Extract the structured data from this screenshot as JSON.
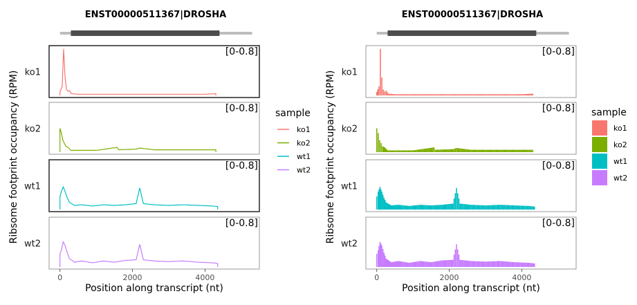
{
  "colors": {
    "ko1": "#F8766D",
    "ko2": "#7CAE00",
    "wt1": "#00BFC4",
    "wt2": "#C77CFF",
    "panel_border": "#7f7f7f",
    "highlight_border": "#333333",
    "gene_track": "#bdbdbd",
    "gene_cds": "#4d4d4d"
  },
  "chart_data": [
    {
      "type": "line",
      "title": "ENST00000511367|DROSHA",
      "xlabel": "Position along transcript (nt)",
      "ylabel": "Ribsome footprint occupancy (RPM)",
      "xlim": [
        -300,
        5500
      ],
      "x_ticks": [
        0,
        2000,
        4000
      ],
      "x_tick_labels": [
        "0",
        "2000",
        "4000"
      ],
      "ylim": [
        0,
        0.8
      ],
      "grid": false,
      "gene_model": {
        "transcript_start": 0,
        "transcript_end": 5300,
        "cds_start": 300,
        "cds_end": 4400
      },
      "legend": {
        "title": "sample",
        "position": "right",
        "style": "line",
        "entries": [
          "ko1",
          "ko2",
          "wt1",
          "wt2"
        ]
      },
      "facets": [
        {
          "label": "ko1",
          "range_label": "[0-0.8]",
          "highlighted": true
        },
        {
          "label": "ko2",
          "range_label": "[0-0.8]",
          "highlighted": false
        },
        {
          "label": "wt1",
          "range_label": "[0-0.8]",
          "highlighted": true
        },
        {
          "label": "wt2",
          "range_label": "[0-0.8]",
          "highlighted": false
        }
      ],
      "series": [
        {
          "name": "ko1",
          "points": [
            [
              0,
              0.06
            ],
            [
              60,
              0.15
            ],
            [
              100,
              0.78
            ],
            [
              140,
              0.3
            ],
            [
              180,
              0.1
            ],
            [
              220,
              0.07
            ],
            [
              260,
              0.08
            ],
            [
              320,
              0.03
            ],
            [
              500,
              0.02
            ],
            [
              1000,
              0.02
            ],
            [
              1500,
              0.02
            ],
            [
              2000,
              0.02
            ],
            [
              2500,
              0.02
            ],
            [
              3000,
              0.02
            ],
            [
              3500,
              0.02
            ],
            [
              4000,
              0.02
            ],
            [
              4300,
              0.03
            ]
          ]
        },
        {
          "name": "ko2",
          "points": [
            [
              0,
              0.4
            ],
            [
              40,
              0.32
            ],
            [
              80,
              0.2
            ],
            [
              120,
              0.15
            ],
            [
              160,
              0.1
            ],
            [
              220,
              0.08
            ],
            [
              300,
              0.03
            ],
            [
              600,
              0.03
            ],
            [
              1000,
              0.03
            ],
            [
              1580,
              0.08
            ],
            [
              1620,
              0.04
            ],
            [
              2100,
              0.05
            ],
            [
              2200,
              0.07
            ],
            [
              2600,
              0.04
            ],
            [
              3200,
              0.04
            ],
            [
              3800,
              0.04
            ],
            [
              4300,
              0.04
            ]
          ]
        },
        {
          "name": "wt1",
          "points": [
            [
              0,
              0.22
            ],
            [
              40,
              0.3
            ],
            [
              90,
              0.38
            ],
            [
              140,
              0.3
            ],
            [
              200,
              0.2
            ],
            [
              260,
              0.12
            ],
            [
              400,
              0.07
            ],
            [
              600,
              0.08
            ],
            [
              900,
              0.06
            ],
            [
              1200,
              0.08
            ],
            [
              1500,
              0.07
            ],
            [
              1800,
              0.08
            ],
            [
              2100,
              0.1
            ],
            [
              2200,
              0.36
            ],
            [
              2300,
              0.1
            ],
            [
              2600,
              0.08
            ],
            [
              3000,
              0.07
            ],
            [
              3400,
              0.08
            ],
            [
              3800,
              0.07
            ],
            [
              4200,
              0.06
            ],
            [
              4350,
              0.05
            ]
          ]
        },
        {
          "name": "wt2",
          "points": [
            [
              0,
              0.22
            ],
            [
              40,
              0.28
            ],
            [
              90,
              0.42
            ],
            [
              140,
              0.36
            ],
            [
              200,
              0.24
            ],
            [
              260,
              0.14
            ],
            [
              400,
              0.08
            ],
            [
              600,
              0.1
            ],
            [
              900,
              0.07
            ],
            [
              1200,
              0.1
            ],
            [
              1500,
              0.08
            ],
            [
              1800,
              0.11
            ],
            [
              2100,
              0.12
            ],
            [
              2200,
              0.38
            ],
            [
              2300,
              0.12
            ],
            [
              2600,
              0.1
            ],
            [
              3000,
              0.09
            ],
            [
              3400,
              0.1
            ],
            [
              3800,
              0.08
            ],
            [
              4200,
              0.07
            ],
            [
              4350,
              0.06
            ]
          ]
        }
      ]
    },
    {
      "type": "bar",
      "title": "ENST00000511367|DROSHA",
      "xlabel": "Position along transcript (nt)",
      "ylabel": "Ribsome footprint occupancy (RPM)",
      "xlim": [
        -300,
        5500
      ],
      "x_ticks": [
        0,
        2000,
        4000
      ],
      "x_tick_labels": [
        "0",
        "2000",
        "4000"
      ],
      "ylim": [
        0,
        0.8
      ],
      "grid": false,
      "gene_model": {
        "transcript_start": 0,
        "transcript_end": 5300,
        "cds_start": 300,
        "cds_end": 4400
      },
      "legend": {
        "title": "sample",
        "position": "right",
        "style": "fill",
        "entries": [
          "ko1",
          "ko2",
          "wt1",
          "wt2"
        ]
      },
      "facets": [
        {
          "label": "ko1",
          "range_label": "[0-0.8]",
          "highlighted": false
        },
        {
          "label": "ko2",
          "range_label": "[0-0.8]",
          "highlighted": false
        },
        {
          "label": "wt1",
          "range_label": "[0-0.8]",
          "highlighted": false
        },
        {
          "label": "wt2",
          "range_label": "[0-0.8]",
          "highlighted": false
        }
      ],
      "series": [
        {
          "name": "ko1",
          "points": [
            [
              0,
              0.06
            ],
            [
              60,
              0.15
            ],
            [
              100,
              0.78
            ],
            [
              140,
              0.3
            ],
            [
              180,
              0.1
            ],
            [
              220,
              0.07
            ],
            [
              260,
              0.08
            ],
            [
              320,
              0.03
            ],
            [
              500,
              0.02
            ],
            [
              1000,
              0.02
            ],
            [
              1500,
              0.02
            ],
            [
              2000,
              0.02
            ],
            [
              2500,
              0.02
            ],
            [
              3000,
              0.02
            ],
            [
              3500,
              0.02
            ],
            [
              4000,
              0.02
            ],
            [
              4300,
              0.03
            ]
          ]
        },
        {
          "name": "ko2",
          "points": [
            [
              0,
              0.4
            ],
            [
              40,
              0.32
            ],
            [
              80,
              0.2
            ],
            [
              120,
              0.15
            ],
            [
              160,
              0.1
            ],
            [
              220,
              0.08
            ],
            [
              300,
              0.03
            ],
            [
              600,
              0.03
            ],
            [
              1000,
              0.03
            ],
            [
              1580,
              0.08
            ],
            [
              1620,
              0.04
            ],
            [
              2100,
              0.05
            ],
            [
              2200,
              0.07
            ],
            [
              2600,
              0.04
            ],
            [
              3200,
              0.04
            ],
            [
              3800,
              0.04
            ],
            [
              4300,
              0.04
            ]
          ]
        },
        {
          "name": "wt1",
          "points": [
            [
              0,
              0.22
            ],
            [
              40,
              0.3
            ],
            [
              90,
              0.38
            ],
            [
              140,
              0.3
            ],
            [
              200,
              0.2
            ],
            [
              260,
              0.12
            ],
            [
              400,
              0.07
            ],
            [
              600,
              0.08
            ],
            [
              900,
              0.06
            ],
            [
              1200,
              0.08
            ],
            [
              1500,
              0.07
            ],
            [
              1800,
              0.08
            ],
            [
              2100,
              0.1
            ],
            [
              2200,
              0.36
            ],
            [
              2300,
              0.1
            ],
            [
              2600,
              0.08
            ],
            [
              3000,
              0.07
            ],
            [
              3400,
              0.08
            ],
            [
              3800,
              0.07
            ],
            [
              4200,
              0.06
            ],
            [
              4350,
              0.05
            ]
          ]
        },
        {
          "name": "wt2",
          "points": [
            [
              0,
              0.22
            ],
            [
              40,
              0.28
            ],
            [
              90,
              0.42
            ],
            [
              140,
              0.36
            ],
            [
              200,
              0.24
            ],
            [
              260,
              0.14
            ],
            [
              400,
              0.08
            ],
            [
              600,
              0.1
            ],
            [
              900,
              0.07
            ],
            [
              1200,
              0.1
            ],
            [
              1500,
              0.08
            ],
            [
              1800,
              0.11
            ],
            [
              2100,
              0.12
            ],
            [
              2200,
              0.38
            ],
            [
              2300,
              0.12
            ],
            [
              2600,
              0.1
            ],
            [
              3000,
              0.09
            ],
            [
              3400,
              0.1
            ],
            [
              3800,
              0.08
            ],
            [
              4200,
              0.07
            ],
            [
              4350,
              0.06
            ]
          ]
        }
      ]
    }
  ]
}
